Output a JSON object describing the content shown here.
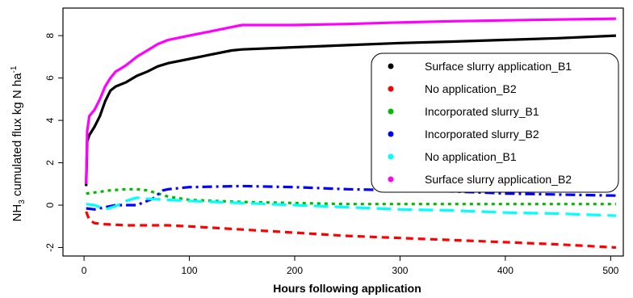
{
  "chart_data": {
    "type": "line",
    "title": "",
    "xlabel": "Hours following application",
    "ylabel_parts": {
      "pre": "NH",
      "sub": "3",
      "mid": " cumulated flux kg N ha",
      "sup": "-1"
    },
    "xlim": [
      -20,
      512
    ],
    "ylim": [
      -2.4,
      9.3
    ],
    "xticks": [
      0,
      100,
      200,
      300,
      400,
      500
    ],
    "yticks": [
      -2,
      0,
      2,
      4,
      6,
      8
    ],
    "legend_position": "right",
    "series": [
      {
        "name": "Surface slurry application_B1",
        "color": "#000000",
        "style": "solid",
        "x": [
          2,
          3,
          5,
          10,
          15,
          20,
          25,
          30,
          40,
          50,
          60,
          70,
          80,
          100,
          120,
          140,
          150,
          200,
          250,
          300,
          350,
          400,
          450,
          505
        ],
        "y": [
          0.9,
          3.0,
          3.3,
          3.7,
          4.2,
          4.9,
          5.4,
          5.6,
          5.8,
          6.1,
          6.3,
          6.55,
          6.7,
          6.9,
          7.1,
          7.3,
          7.35,
          7.45,
          7.55,
          7.65,
          7.72,
          7.8,
          7.88,
          8.0
        ]
      },
      {
        "name": "No application_B2",
        "color": "#ff0000",
        "style": "dashed",
        "x": [
          2,
          5,
          10,
          20,
          40,
          60,
          80,
          100,
          150,
          200,
          250,
          300,
          350,
          400,
          450,
          505
        ],
        "y": [
          -0.3,
          -0.7,
          -0.85,
          -0.9,
          -0.95,
          -0.95,
          -0.95,
          -1.0,
          -1.15,
          -1.3,
          -1.45,
          -1.55,
          -1.65,
          -1.75,
          -1.85,
          -2.0
        ]
      },
      {
        "name": "Incorporated slurry_B1",
        "color": "#00bb00",
        "style": "dotted",
        "x": [
          2,
          10,
          25,
          40,
          50,
          60,
          70,
          80,
          100,
          150,
          200,
          250,
          300,
          400,
          505
        ],
        "y": [
          0.55,
          0.6,
          0.7,
          0.75,
          0.75,
          0.7,
          0.55,
          0.4,
          0.25,
          0.15,
          0.1,
          0.05,
          0.05,
          0.05,
          0.05
        ]
      },
      {
        "name": "Incorporated slurry_B2",
        "color": "#0000ff",
        "style": "dashdot",
        "x": [
          2,
          10,
          20,
          30,
          50,
          65,
          70,
          75,
          80,
          100,
          150,
          200,
          250,
          300,
          350,
          400,
          450,
          505
        ],
        "y": [
          -0.15,
          -0.2,
          -0.1,
          0.0,
          0.0,
          0.3,
          0.5,
          0.7,
          0.75,
          0.85,
          0.9,
          0.85,
          0.75,
          0.7,
          0.65,
          0.55,
          0.5,
          0.45
        ]
      },
      {
        "name": "No application_B1",
        "color": "#00ffff",
        "style": "longdash",
        "x": [
          2,
          10,
          20,
          30,
          40,
          50,
          60,
          80,
          100,
          150,
          200,
          250,
          300,
          350,
          400,
          450,
          505
        ],
        "y": [
          0.05,
          0.0,
          -0.2,
          -0.05,
          0.2,
          0.35,
          0.3,
          0.25,
          0.2,
          0.1,
          0.0,
          -0.1,
          -0.2,
          -0.25,
          -0.35,
          -0.4,
          -0.5
        ]
      },
      {
        "name": "Surface slurry application_B2",
        "color": "#ff00ff",
        "style": "solid",
        "x": [
          2,
          3,
          5,
          10,
          15,
          20,
          25,
          30,
          40,
          50,
          60,
          70,
          80,
          100,
          120,
          140,
          150,
          200,
          250,
          300,
          350,
          400,
          450,
          505
        ],
        "y": [
          1.0,
          3.5,
          4.2,
          4.5,
          5.0,
          5.6,
          6.0,
          6.3,
          6.6,
          7.0,
          7.3,
          7.6,
          7.8,
          8.0,
          8.2,
          8.4,
          8.5,
          8.5,
          8.55,
          8.62,
          8.68,
          8.72,
          8.76,
          8.8
        ]
      }
    ]
  }
}
